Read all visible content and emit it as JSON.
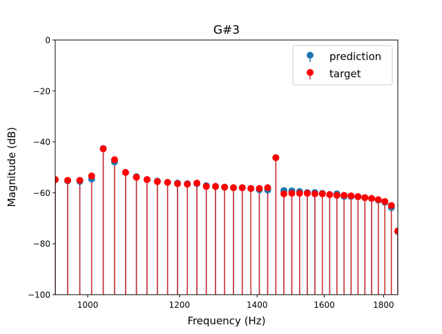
{
  "chart_data": {
    "type": "stem",
    "title": "G#3",
    "xlabel": "Frequency (Hz)",
    "ylabel": "Magnitude (dB)",
    "xscale": "log",
    "xlim": [
      937.5,
      1851.6
    ],
    "ylim": [
      -100,
      0
    ],
    "xticks": [
      1000,
      1200,
      1400,
      1600,
      1800
    ],
    "xtick_labels": [
      "1000",
      "1200",
      "1400",
      "1600",
      "1800"
    ],
    "yticks": [
      0,
      -20,
      -40,
      -60,
      -80,
      -100
    ],
    "ytick_labels": [
      "0",
      "−20",
      "−40",
      "−60",
      "−80",
      "−100"
    ],
    "grid": false,
    "legend": {
      "placement": "top-right",
      "entries": [
        "prediction",
        "target"
      ]
    },
    "x": [
      937.5,
      960.9,
      984.4,
      1007.8,
      1031.3,
      1054.7,
      1078.1,
      1101.6,
      1125.0,
      1148.4,
      1171.9,
      1195.3,
      1218.8,
      1242.2,
      1265.6,
      1289.1,
      1312.5,
      1335.9,
      1359.4,
      1382.8,
      1406.3,
      1429.7,
      1453.1,
      1476.6,
      1500.0,
      1523.4,
      1546.9,
      1570.3,
      1593.8,
      1617.2,
      1640.6,
      1664.1,
      1687.5,
      1710.9,
      1734.4,
      1757.8,
      1781.3,
      1804.7,
      1828.1,
      1851.6
    ],
    "series": [
      {
        "name": "prediction",
        "color": "#1f77b4",
        "values": [
          -54.8,
          -55.3,
          -55.5,
          -54.6,
          -42.6,
          -47.9,
          -52.0,
          -53.7,
          -54.8,
          -55.4,
          -55.9,
          -56.2,
          -56.4,
          -56.4,
          -57.2,
          -57.5,
          -57.8,
          -58.0,
          -58.0,
          -58.3,
          -58.8,
          -58.9,
          -46.2,
          -59.1,
          -59.2,
          -59.5,
          -59.9,
          -59.9,
          -60.2,
          -60.7,
          -60.4,
          -61.4,
          -61.4,
          -61.5,
          -61.9,
          -62.2,
          -62.9,
          -63.7,
          -65.8,
          -75.2
        ]
      },
      {
        "name": "target",
        "color": "#ff0000",
        "stem_color": "#d62728",
        "values": [
          -54.8,
          -55.1,
          -55.1,
          -53.4,
          -42.7,
          -47.0,
          -52.0,
          -53.9,
          -54.8,
          -55.6,
          -55.9,
          -56.4,
          -56.6,
          -56.2,
          -57.5,
          -57.5,
          -57.8,
          -58.0,
          -58.0,
          -58.3,
          -58.3,
          -58.0,
          -46.2,
          -60.4,
          -60.2,
          -60.2,
          -60.2,
          -60.4,
          -60.4,
          -60.7,
          -61.0,
          -61.0,
          -61.2,
          -61.5,
          -61.9,
          -62.2,
          -62.7,
          -63.4,
          -65.0,
          -75.0
        ]
      }
    ]
  }
}
